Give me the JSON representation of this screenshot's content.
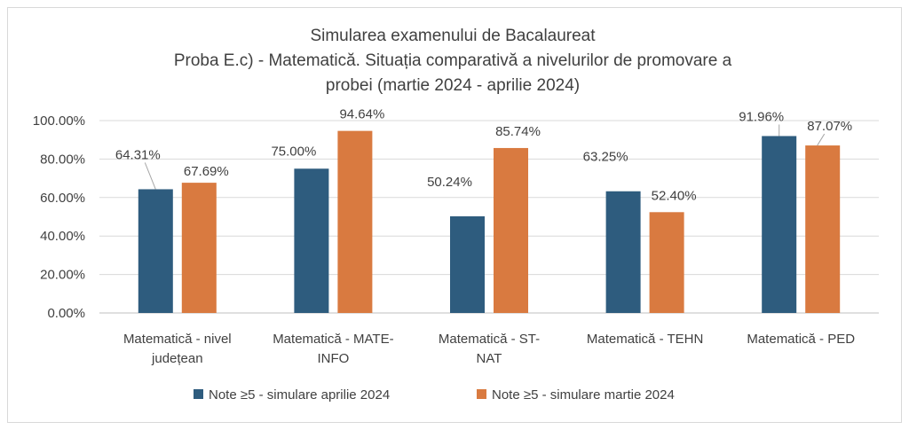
{
  "chart_data": {
    "type": "bar",
    "title_lines": [
      "Simularea examenului de Bacalaureat",
      "Proba E.c) - Matematică. Situația comparativă a nivelurilor de promovare a",
      "probei (martie 2024 - aprilie 2024)"
    ],
    "categories": [
      [
        "Matematică - nivel",
        "județean"
      ],
      [
        "Matematică - MATE-",
        "INFO"
      ],
      [
        "Matematică - ST-",
        "NAT"
      ],
      [
        "Matematică - TEHN"
      ],
      [
        "Matematică - PED"
      ]
    ],
    "series": [
      {
        "name": "Note ≥5 - simulare aprilie 2024",
        "color": "#2e5c7e",
        "values": [
          64.31,
          75.0,
          50.24,
          63.25,
          91.96
        ],
        "labels": [
          "64.31%",
          "75.00%",
          "50.24%",
          "63.25%",
          "91.96%"
        ]
      },
      {
        "name": "Note ≥5 - simulare martie 2024",
        "color": "#d97a40",
        "values": [
          67.69,
          94.64,
          85.74,
          52.4,
          87.07
        ],
        "labels": [
          "67.69%",
          "94.64%",
          "85.74%",
          "52.40%",
          "87.07%"
        ]
      }
    ],
    "ylim": [
      0,
      100
    ],
    "yticks": [
      0,
      20,
      40,
      60,
      80,
      100
    ],
    "ytick_labels": [
      "0.00%",
      "20.00%",
      "40.00%",
      "60.00%",
      "80.00%",
      "100.00%"
    ],
    "grid": true,
    "legend_position": "bottom"
  }
}
